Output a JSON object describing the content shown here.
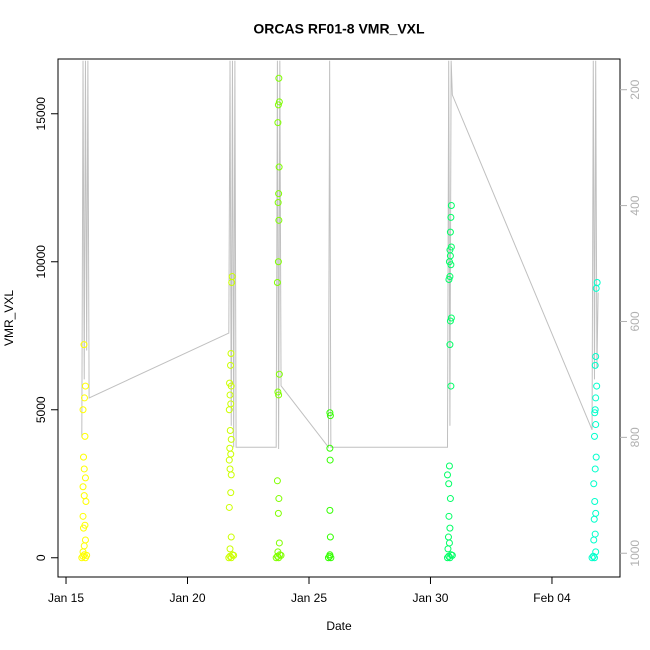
{
  "chart_data": {
    "type": "scatter",
    "title": "ORCAS RF01-8 VMR_VXL",
    "x_label": "Date",
    "y_label": "VMR_VXL",
    "xlim": [
      14.67,
      37.8
    ],
    "xticks": [
      {
        "value": 15,
        "label": "Jan 15"
      },
      {
        "value": 20,
        "label": "Jan 20"
      },
      {
        "value": 25,
        "label": "Jan 25"
      },
      {
        "value": 30,
        "label": "Jan 30"
      },
      {
        "value": 35,
        "label": "Feb 04"
      }
    ],
    "ylim": [
      -650,
      16850
    ],
    "yticks": [
      0,
      5000,
      10000,
      15000
    ],
    "y2lim": [
      1041,
      147
    ],
    "y2ticks": [
      200,
      400,
      600,
      800,
      1000
    ],
    "y2_color": "#b0b0b0",
    "series": [
      {
        "type": "line",
        "axis": "y2",
        "color": "#c0c0c0",
        "x": [
          15.65,
          15.7,
          15.75,
          15.8,
          15.85,
          15.9,
          15.95,
          21.7,
          21.75,
          21.8,
          21.85,
          21.9,
          21.95,
          22.0,
          23.65,
          23.7,
          23.75,
          23.8,
          23.85,
          25.8,
          25.85,
          25.9,
          30.7,
          30.75,
          30.8,
          30.85,
          30.9,
          36.65,
          36.7,
          36.75,
          36.8,
          36.85,
          36.9
        ],
        "values": [
          800,
          150,
          700,
          150,
          650,
          150,
          732,
          620,
          150,
          780,
          150,
          817,
          150,
          817,
          817,
          150,
          820,
          150,
          711,
          817,
          150,
          817,
          817,
          150,
          780,
          150,
          209,
          787,
          150,
          700,
          150,
          680,
          550
        ]
      },
      {
        "type": "scatter",
        "color": "#ffff00",
        "x": [
          15.65,
          15.7,
          15.75,
          15.8,
          15.85,
          15.7,
          15.75,
          15.8,
          15.72,
          15.78,
          15.7,
          15.82,
          15.75,
          15.7,
          15.8,
          15.75,
          15.72,
          15.78,
          15.7,
          15.76,
          15.8,
          15.74
        ],
        "values": [
          0,
          50,
          100,
          0,
          80,
          200,
          400,
          600,
          1000,
          1100,
          1400,
          1900,
          2100,
          2400,
          2700,
          3000,
          3400,
          4100,
          5000,
          5400,
          5800,
          7200
        ]
      },
      {
        "type": "scatter",
        "color": "#ccff00",
        "x": [
          21.7,
          21.75,
          21.8,
          21.85,
          21.9,
          21.75,
          21.8,
          21.72,
          21.78,
          21.8,
          21.75,
          21.72,
          21.78,
          21.74,
          21.8,
          21.76,
          21.72,
          21.78,
          21.75,
          21.8,
          21.73,
          21.77,
          21.79,
          21.82,
          21.84
        ],
        "values": [
          0,
          50,
          0,
          100,
          80,
          300,
          700,
          1700,
          2200,
          2800,
          3000,
          3300,
          3500,
          3700,
          4000,
          4300,
          5000,
          5200,
          5500,
          5800,
          5900,
          6500,
          6900,
          9300,
          9500
        ]
      },
      {
        "type": "scatter",
        "color": "#80ff00",
        "x": [
          23.65,
          23.7,
          23.75,
          23.8,
          23.85,
          23.72,
          23.78,
          23.74,
          23.76,
          23.7,
          23.75,
          23.72,
          23.78,
          23.7,
          23.74,
          23.76,
          23.73,
          23.75,
          23.77,
          23.72,
          23.74,
          23.78,
          23.76
        ],
        "values": [
          0,
          50,
          0,
          100,
          80,
          200,
          500,
          1500,
          2000,
          2600,
          5500,
          5600,
          6200,
          9300,
          10000,
          11400,
          12000,
          12300,
          13200,
          14700,
          15300,
          15400,
          16200
        ]
      },
      {
        "type": "scatter",
        "color": "#33ff00",
        "x": [
          25.8,
          25.85,
          25.9,
          25.86,
          25.88,
          25.86,
          25.87,
          25.86,
          25.88,
          25.86
        ],
        "values": [
          0,
          50,
          0,
          100,
          700,
          1600,
          3300,
          3700,
          4800,
          4900
        ]
      },
      {
        "type": "scatter",
        "color": "#00ff66",
        "x": [
          30.7,
          30.75,
          30.8,
          30.85,
          30.9,
          30.72,
          30.78,
          30.74,
          30.8,
          30.76,
          30.82,
          30.75,
          30.7,
          30.78,
          30.84,
          30.8,
          30.82,
          30.86,
          30.76,
          30.8,
          30.84,
          30.78,
          30.82,
          30.8,
          30.86,
          30.82,
          30.84,
          30.86
        ],
        "values": [
          0,
          50,
          0,
          100,
          80,
          300,
          500,
          700,
          1000,
          1400,
          2000,
          2500,
          2800,
          3100,
          5800,
          7200,
          8000,
          8100,
          9400,
          9500,
          9900,
          10000,
          10200,
          10400,
          10500,
          11000,
          11500,
          11900
        ]
      },
      {
        "type": "scatter",
        "color": "#00ffcc",
        "x": [
          36.65,
          36.7,
          36.75,
          36.8,
          36.72,
          36.78,
          36.74,
          36.8,
          36.76,
          36.72,
          36.78,
          36.82,
          36.75,
          36.8,
          36.76,
          36.78,
          36.8,
          36.84,
          36.78,
          36.8,
          36.82,
          36.86
        ],
        "values": [
          0,
          50,
          0,
          200,
          600,
          800,
          1300,
          1500,
          1900,
          2500,
          3000,
          3400,
          4100,
          4500,
          4900,
          5000,
          5400,
          5800,
          6500,
          6800,
          9100,
          9300
        ]
      }
    ]
  }
}
